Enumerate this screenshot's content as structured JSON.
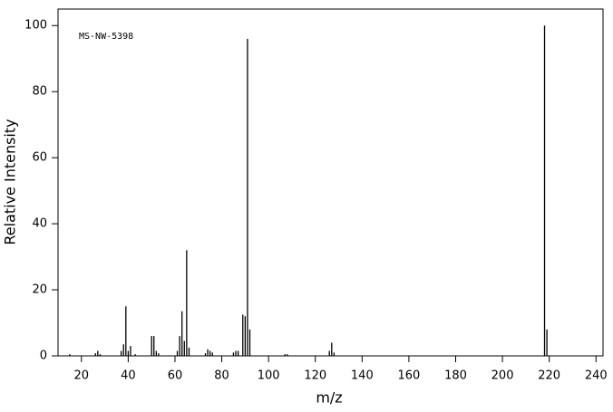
{
  "chart_data": {
    "type": "bar",
    "annotation": "MS-NW-5398",
    "xlabel": "m/z",
    "ylabel": "Relative Intensity",
    "color": "#000000",
    "x": [
      15,
      26,
      27,
      28,
      37,
      38,
      39,
      40,
      41,
      43,
      50,
      51,
      52,
      53,
      61,
      62,
      63,
      64,
      65,
      66,
      73,
      74,
      75,
      76,
      85,
      86,
      87,
      89,
      90,
      91,
      92,
      107,
      108,
      126,
      127,
      128,
      218,
      219
    ],
    "values": [
      0.5,
      0.8,
      1.5,
      0.5,
      1.5,
      3.5,
      15,
      1.5,
      3,
      0.5,
      6,
      6,
      1.5,
      0.8,
      1.5,
      6,
      13.5,
      4.5,
      32,
      2.5,
      0.8,
      2,
      1.5,
      1,
      1,
      1.5,
      1.5,
      12.5,
      12,
      96,
      8,
      0.5,
      0.5,
      1.5,
      4,
      1,
      100,
      8
    ],
    "xlim": [
      10,
      243
    ],
    "xticks": [
      20,
      40,
      60,
      80,
      100,
      120,
      140,
      160,
      180,
      200,
      220,
      240
    ],
    "ylim": [
      0,
      105
    ],
    "yticks": [
      0,
      20,
      40,
      60,
      80,
      100
    ]
  }
}
